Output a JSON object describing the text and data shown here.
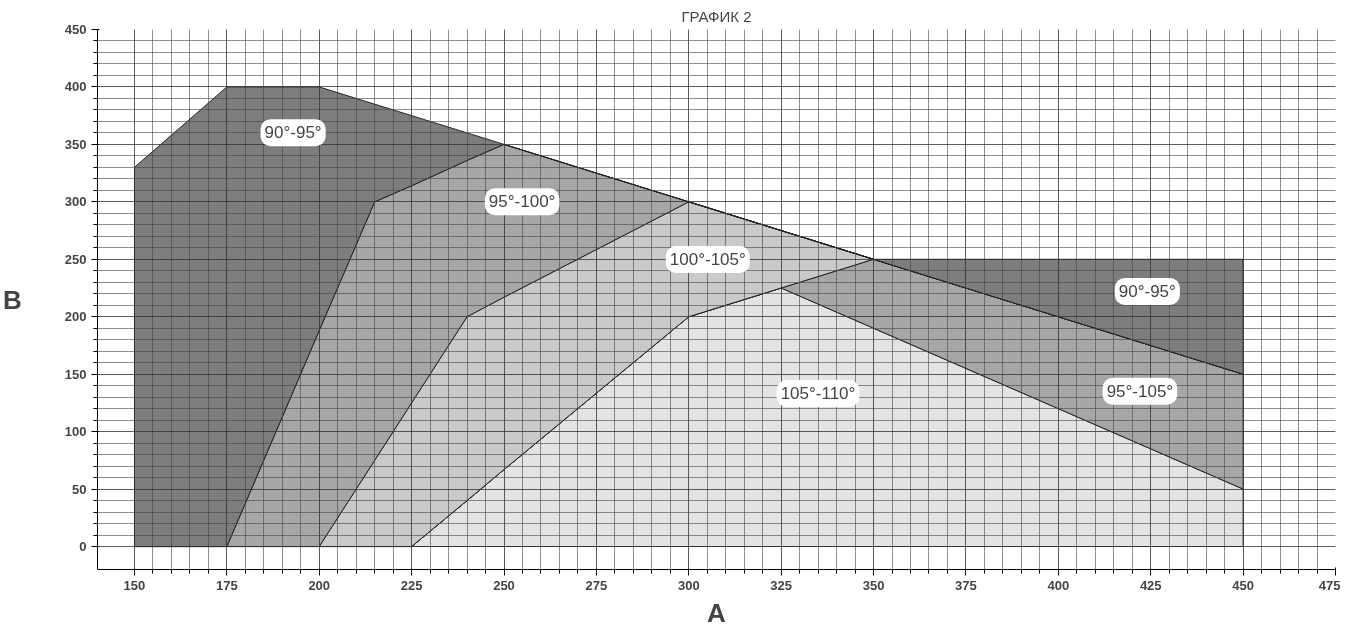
{
  "chart_data": {
    "type": "area",
    "title": "ГРАФИК 2",
    "xlabel": "A",
    "ylabel": "B",
    "stacked": true,
    "x": [
      150,
      175,
      200,
      215,
      225,
      240,
      250,
      300,
      325,
      350,
      450
    ],
    "series": [
      {
        "color": "#e3e3e3",
        "values": [
          0,
          0,
          0,
          0,
          0,
          40,
          67,
          200,
          225,
          190,
          50
        ]
      },
      {
        "color": "#a6a6a6",
        "values": [
          0,
          0,
          0,
          0,
          0,
          0,
          0,
          0,
          0,
          60,
          100
        ]
      },
      {
        "color": "#c9c9c9",
        "values": [
          0,
          0,
          0,
          75,
          125,
          160,
          150,
          100,
          50,
          0,
          0
        ]
      },
      {
        "color": "#a6a6a6",
        "values": [
          0,
          0,
          188,
          225,
          189,
          136,
          133,
          0,
          0,
          0,
          0
        ]
      },
      {
        "color": "#7d7d7d",
        "values": [
          330,
          400,
          212,
          85,
          61,
          24,
          0,
          0,
          0,
          0,
          100
        ]
      }
    ],
    "annotations": [
      "90°-95°",
      "95°-100°",
      "100°-105°",
      "90°-95°",
      "95°-105°",
      "105°-110°"
    ],
    "xlim": [
      140,
      475
    ],
    "ylim": [
      -20,
      450
    ],
    "xticks": [
      150,
      175,
      200,
      225,
      250,
      275,
      300,
      325,
      350,
      375,
      400,
      425,
      450,
      475
    ],
    "yticks": [
      0,
      50,
      100,
      150,
      200,
      250,
      300,
      350,
      400,
      450
    ],
    "grid": true
  }
}
